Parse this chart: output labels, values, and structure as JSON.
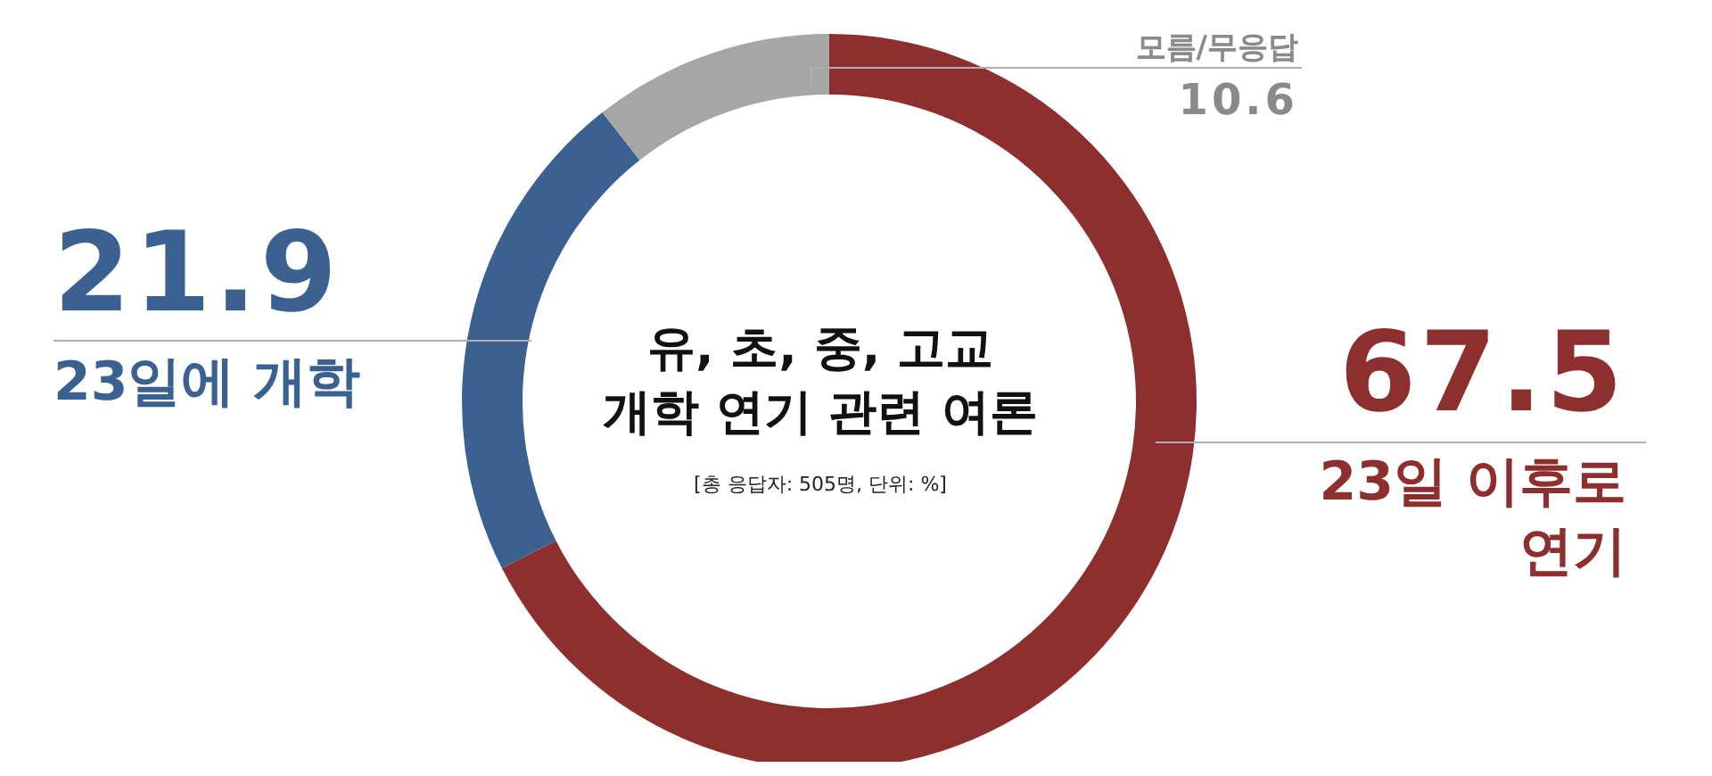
{
  "chart_data": {
    "type": "donut",
    "title": "유, 초, 중, 고교 개학 연기 관련 여론",
    "subtitle": "[총 응답자: 505명, 단위: %]",
    "categories": [
      "23일 이후로 연기",
      "23일에 개학",
      "모름/무응답"
    ],
    "values": [
      67.5,
      21.9,
      10.6
    ],
    "colors": [
      "#8e2f2f",
      "#3b6190",
      "#a6a6a6"
    ],
    "data_labels": true
  }
}
